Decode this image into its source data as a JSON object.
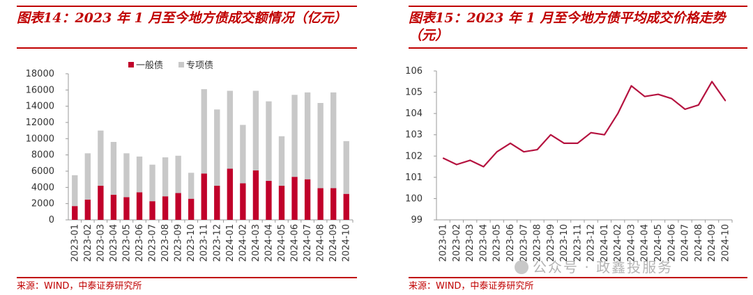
{
  "left": {
    "title": "图表14：2023 年 1 月至今地方债成交额情况（亿元）",
    "source": "来源：WIND，中泰证券研究所"
  },
  "right": {
    "title": "图表15：2023 年 1 月至今地方债平均成交价格走势（元）",
    "source": "来源：WIND，中泰证券研究所"
  },
  "watermark": {
    "text": "公众号 · 政鑫投服务"
  },
  "colors": {
    "accent": "#c00000",
    "general_bond": "#c0002a",
    "special_bond": "#c8c8c8",
    "line": "#b5123f"
  },
  "chart_data": [
    {
      "type": "bar",
      "stacked": true,
      "title": "图表14：2023 年 1 月至今地方债成交额情况（亿元）",
      "categories": [
        "2023-01",
        "2023-02",
        "2023-03",
        "2023-04",
        "2023-05",
        "2023-06",
        "2023-07",
        "2023-08",
        "2023-09",
        "2023-10",
        "2023-11",
        "2023-12",
        "2024-01",
        "2024-02",
        "2024-03",
        "2024-04",
        "2024-05",
        "2024-06",
        "2024-07",
        "2024-08",
        "2024-09",
        "2024-10"
      ],
      "series": [
        {
          "name": "一般债",
          "values": [
            1700,
            2500,
            4200,
            3100,
            2800,
            3400,
            2300,
            2900,
            3300,
            2600,
            5700,
            4200,
            6300,
            4500,
            6100,
            4800,
            4200,
            5300,
            5000,
            3900,
            3900,
            3200
          ]
        },
        {
          "name": "专项债",
          "values": [
            3800,
            5700,
            6800,
            6500,
            5400,
            4400,
            4500,
            4800,
            4600,
            3200,
            10400,
            9400,
            9600,
            7200,
            9800,
            9800,
            6100,
            10100,
            10700,
            10500,
            11800,
            6500
          ]
        }
      ],
      "yticks": [
        0,
        2000,
        4000,
        6000,
        8000,
        10000,
        12000,
        14000,
        16000,
        18000
      ],
      "ylim": [
        0,
        18000
      ],
      "legend": "top-center",
      "grid": false
    },
    {
      "type": "line",
      "title": "图表15：2023 年 1 月至今地方债平均成交价格走势（元）",
      "x": [
        "2023-01",
        "2023-02",
        "2023-03",
        "2023-04",
        "2023-05",
        "2023-06",
        "2023-07",
        "2023-08",
        "2023-09",
        "2023-10",
        "2023-11",
        "2023-12",
        "2024-01",
        "2024-02",
        "2024-03",
        "2024-04",
        "2024-05",
        "2024-06",
        "2024-07",
        "2024-08",
        "2024-09",
        "2024-10"
      ],
      "values": [
        101.9,
        101.6,
        101.8,
        101.5,
        102.2,
        102.6,
        102.2,
        102.3,
        103.0,
        102.6,
        102.6,
        103.1,
        103.0,
        104.0,
        105.3,
        104.8,
        104.9,
        104.7,
        104.2,
        104.4,
        105.5,
        104.6
      ],
      "yticks": [
        99,
        100,
        101,
        102,
        103,
        104,
        105,
        106
      ],
      "ylim": [
        99,
        106
      ],
      "grid": false
    }
  ]
}
